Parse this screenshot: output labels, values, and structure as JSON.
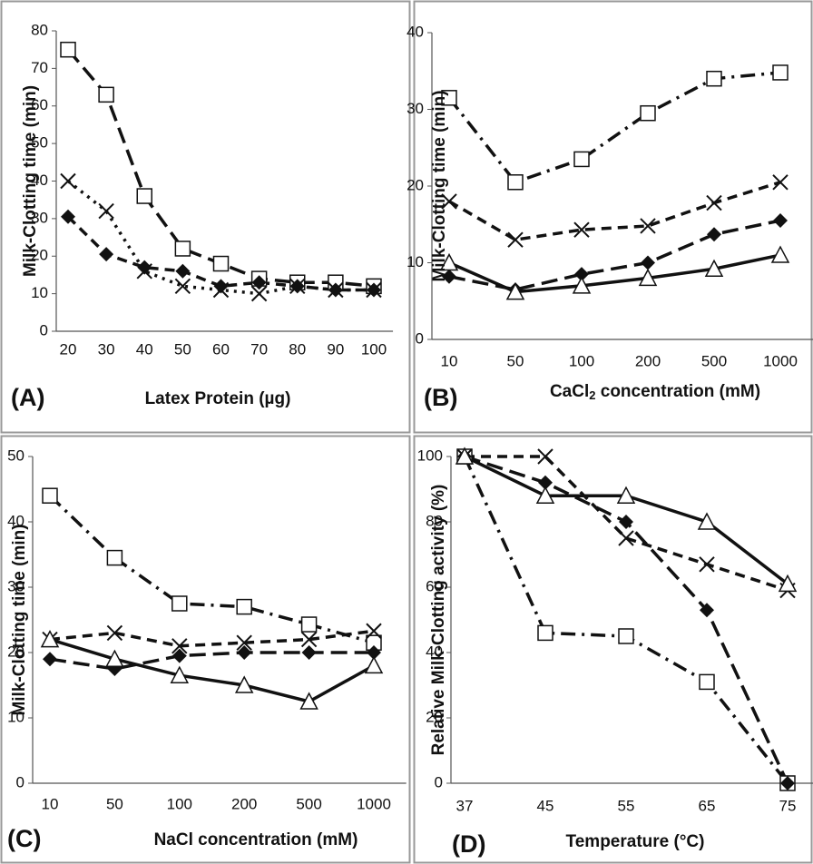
{
  "chart_data": [
    {
      "type": "line",
      "panel_label": "(A)",
      "x_label": "Latex Protein (µg)",
      "y_label": "Milk-Clotting time (min)",
      "categories": [
        "20",
        "30",
        "40",
        "50",
        "60",
        "70",
        "80",
        "90",
        "100"
      ],
      "ylim": [
        0,
        80
      ],
      "yticks": [
        0,
        10,
        20,
        30,
        40,
        50,
        60,
        70,
        80
      ],
      "series": [
        {
          "marker": "square",
          "color": "#111111",
          "dash": "long-dash",
          "values": [
            75,
            63,
            36,
            22,
            18,
            14,
            13,
            13,
            12
          ]
        },
        {
          "marker": "x",
          "color": "#111111",
          "dash": "dot",
          "values": [
            40,
            32,
            16,
            12,
            11,
            10,
            12,
            11,
            11
          ]
        },
        {
          "marker": "diamond",
          "color": "#111111",
          "dash": "dash",
          "values": [
            30.5,
            20.5,
            17,
            16,
            12,
            13,
            12,
            11,
            11
          ]
        }
      ]
    },
    {
      "type": "line",
      "panel_label": "(B)",
      "x_label_parts": [
        "CaCl",
        "2",
        " concentration  (mM)"
      ],
      "y_label": "Milk-Clotting time (min)",
      "categories": [
        "10",
        "50",
        "100",
        "200",
        "500",
        "1000"
      ],
      "ylim": [
        0,
        40
      ],
      "yticks": [
        0,
        10,
        20,
        30,
        40
      ],
      "series": [
        {
          "marker": "square",
          "color": "#111111",
          "dash": "dash-dot",
          "values": [
            31.5,
            20.5,
            23.5,
            29.5,
            34,
            34.8
          ]
        },
        {
          "marker": "x",
          "color": "#111111",
          "dash": "dash",
          "values": [
            18,
            13,
            14.3,
            14.8,
            17.8,
            20.5
          ]
        },
        {
          "marker": "diamond",
          "color": "#111111",
          "dash": "long-dash",
          "values": [
            8.2,
            6.5,
            8.5,
            10,
            13.7,
            15.5
          ]
        },
        {
          "marker": "triangle",
          "color": "#111111",
          "dash": "solid",
          "values": [
            10,
            6.2,
            7,
            8,
            9.2,
            11
          ]
        }
      ]
    },
    {
      "type": "line",
      "panel_label": "(C)",
      "x_label": "NaCl concentration  (mM)",
      "y_label": "Milk-Clotting time (min)",
      "categories": [
        "10",
        "50",
        "100",
        "200",
        "500",
        "1000"
      ],
      "ylim": [
        0,
        50
      ],
      "yticks": [
        0,
        10,
        20,
        30,
        40,
        50
      ],
      "series": [
        {
          "marker": "square",
          "color": "#111111",
          "dash": "dash-dot",
          "values": [
            44,
            34.5,
            27.5,
            27,
            24.3,
            21.5
          ]
        },
        {
          "marker": "x",
          "color": "#111111",
          "dash": "dash",
          "values": [
            22,
            23,
            21,
            21.5,
            22,
            23.3
          ]
        },
        {
          "marker": "diamond",
          "color": "#111111",
          "dash": "long-dash",
          "values": [
            19,
            17.5,
            19.5,
            20,
            20,
            20
          ]
        },
        {
          "marker": "triangle",
          "color": "#111111",
          "dash": "solid",
          "values": [
            22,
            19,
            16.5,
            15,
            12.5,
            18
          ]
        }
      ]
    },
    {
      "type": "line",
      "panel_label": "(D)",
      "x_label": "Temperature (°C)",
      "y_label": "Relative Milk-Clotting activity (%)",
      "categories": [
        "37",
        "45",
        "55",
        "65",
        "75"
      ],
      "ylim": [
        0,
        100
      ],
      "yticks": [
        0,
        20,
        40,
        60,
        80,
        100
      ],
      "series": [
        {
          "marker": "square",
          "color": "#111111",
          "dash": "dash-dot",
          "values": [
            100,
            46,
            45,
            31,
            0
          ]
        },
        {
          "marker": "x",
          "color": "#111111",
          "dash": "dash",
          "values": [
            100,
            100,
            75,
            67,
            59
          ]
        },
        {
          "marker": "diamond",
          "color": "#111111",
          "dash": "long-dash",
          "values": [
            100,
            92,
            80,
            53,
            0
          ]
        },
        {
          "marker": "triangle",
          "color": "#111111",
          "dash": "solid",
          "values": [
            100,
            88,
            88,
            80,
            61
          ]
        }
      ]
    }
  ]
}
